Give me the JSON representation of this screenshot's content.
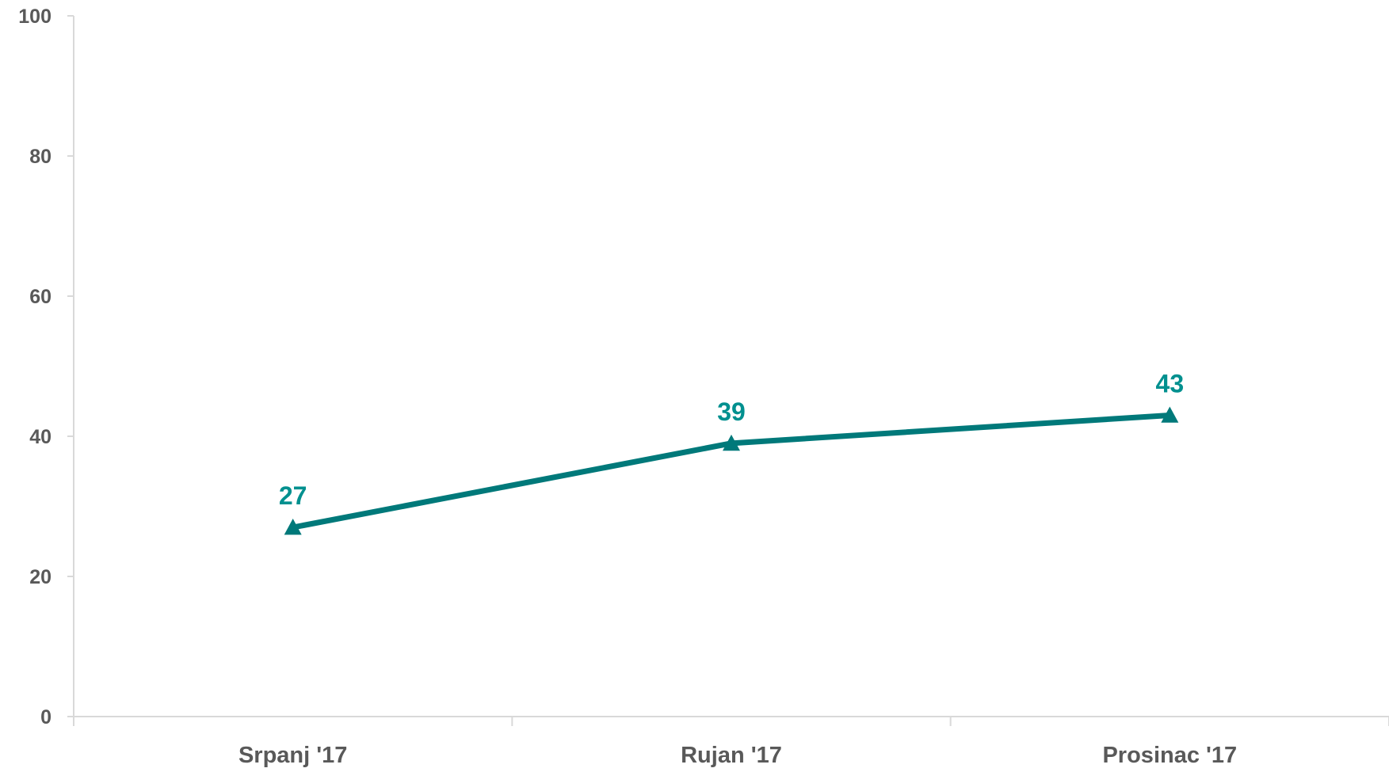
{
  "chart_data": {
    "type": "line",
    "categories": [
      "Srpanj '17",
      "Rujan '17",
      "Prosinac '17"
    ],
    "series": [
      {
        "values": [
          27,
          39,
          43
        ],
        "color": "#00797a",
        "label_color": "#00908f",
        "marker": "triangle"
      }
    ],
    "data_labels": [
      "27",
      "39",
      "43"
    ],
    "y_ticks": [
      "0",
      "20",
      "40",
      "60",
      "80",
      "100"
    ],
    "ylim": [
      0,
      100
    ],
    "grid": false,
    "legend": "none",
    "title": "",
    "xlabel": "",
    "ylabel": ""
  }
}
